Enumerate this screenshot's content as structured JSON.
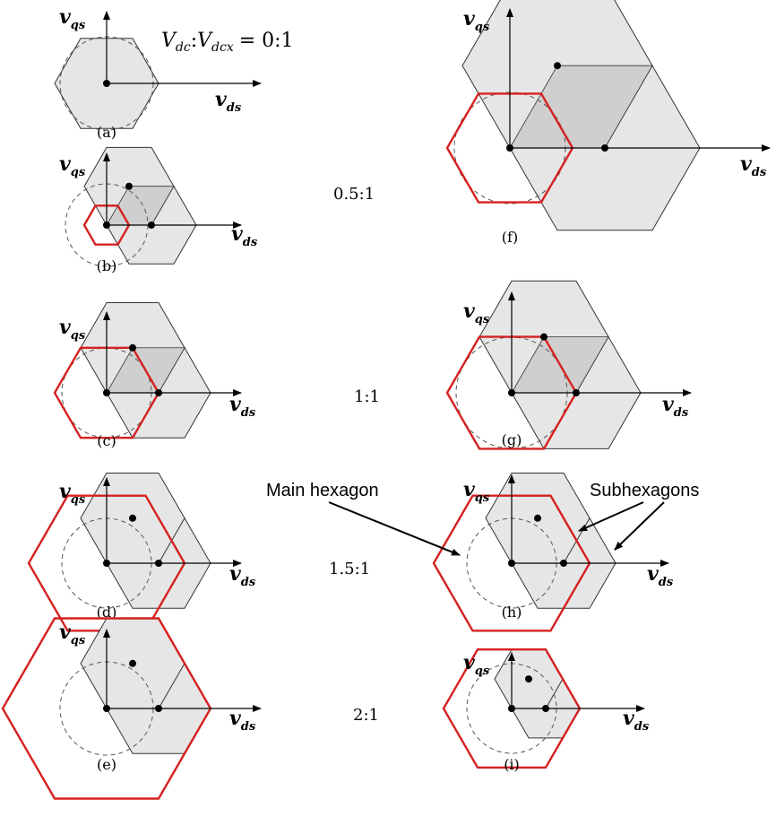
{
  "title_ratio": {
    "lhs": "V",
    "lhs_sub": "dc",
    "sep": ":",
    "rhs": "V",
    "rhs_sub": "dcx",
    "eq": "= 0:1"
  },
  "axis_labels": {
    "v": "v",
    "d_sub": "ds",
    "q_sub": "qs"
  },
  "ratios": [
    "0.5:1",
    "1:1",
    "1.5:1",
    "2:1"
  ],
  "panels": [
    {
      "id": "a",
      "caption": "(a)"
    },
    {
      "id": "b",
      "caption": "(b)"
    },
    {
      "id": "c",
      "caption": "(c)"
    },
    {
      "id": "d",
      "caption": "(d)"
    },
    {
      "id": "e",
      "caption": "(e)"
    },
    {
      "id": "f",
      "caption": "(f)"
    },
    {
      "id": "g",
      "caption": "(g)"
    },
    {
      "id": "h",
      "caption": "(h)"
    },
    {
      "id": "i",
      "caption": "(i)"
    }
  ],
  "annotations": {
    "main_hexagon": "Main hexagon",
    "subhexagons": "Subhexagons"
  },
  "colors": {
    "main_hexagon": "#d62020",
    "subhexagon_fill": "#e6e6e6",
    "overlap_fill": "#cfcfcf",
    "outline": "#333333"
  }
}
